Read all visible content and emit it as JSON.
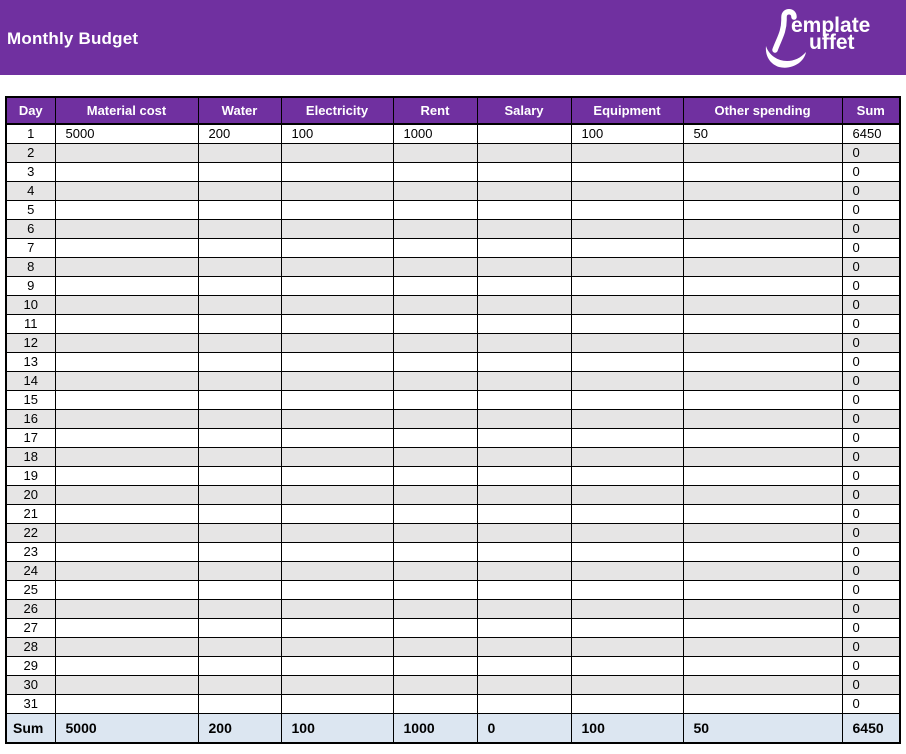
{
  "header": {
    "title": "Monthly Budget",
    "logo": {
      "icon": "ladle-icon",
      "line1": "emplate",
      "line2": "uffet"
    }
  },
  "colors": {
    "banner_bg": "#7030A0",
    "header_row_bg": "#7030A0",
    "header_text": "#FFFFFF",
    "row_alt_bg": "#E6E5E5",
    "footer_row_bg": "#DCE6F1",
    "grid_border": "#000000"
  },
  "table": {
    "columns": [
      "Day",
      "Material cost",
      "Water",
      "Electricity",
      "Rent",
      "Salary",
      "Equipment",
      "Other spending",
      "Sum"
    ],
    "rows": [
      {
        "day": "1",
        "cells": [
          "5000",
          "200",
          "100",
          "1000",
          "",
          "100",
          "50"
        ],
        "sum": "6450"
      },
      {
        "day": "2",
        "cells": [
          "",
          "",
          "",
          "",
          "",
          "",
          ""
        ],
        "sum": "0"
      },
      {
        "day": "3",
        "cells": [
          "",
          "",
          "",
          "",
          "",
          "",
          ""
        ],
        "sum": "0"
      },
      {
        "day": "4",
        "cells": [
          "",
          "",
          "",
          "",
          "",
          "",
          ""
        ],
        "sum": "0"
      },
      {
        "day": "5",
        "cells": [
          "",
          "",
          "",
          "",
          "",
          "",
          ""
        ],
        "sum": "0"
      },
      {
        "day": "6",
        "cells": [
          "",
          "",
          "",
          "",
          "",
          "",
          ""
        ],
        "sum": "0"
      },
      {
        "day": "7",
        "cells": [
          "",
          "",
          "",
          "",
          "",
          "",
          ""
        ],
        "sum": "0"
      },
      {
        "day": "8",
        "cells": [
          "",
          "",
          "",
          "",
          "",
          "",
          ""
        ],
        "sum": "0"
      },
      {
        "day": "9",
        "cells": [
          "",
          "",
          "",
          "",
          "",
          "",
          ""
        ],
        "sum": "0"
      },
      {
        "day": "10",
        "cells": [
          "",
          "",
          "",
          "",
          "",
          "",
          ""
        ],
        "sum": "0"
      },
      {
        "day": "11",
        "cells": [
          "",
          "",
          "",
          "",
          "",
          "",
          ""
        ],
        "sum": "0"
      },
      {
        "day": "12",
        "cells": [
          "",
          "",
          "",
          "",
          "",
          "",
          ""
        ],
        "sum": "0"
      },
      {
        "day": "13",
        "cells": [
          "",
          "",
          "",
          "",
          "",
          "",
          ""
        ],
        "sum": "0"
      },
      {
        "day": "14",
        "cells": [
          "",
          "",
          "",
          "",
          "",
          "",
          ""
        ],
        "sum": "0"
      },
      {
        "day": "15",
        "cells": [
          "",
          "",
          "",
          "",
          "",
          "",
          ""
        ],
        "sum": "0"
      },
      {
        "day": "16",
        "cells": [
          "",
          "",
          "",
          "",
          "",
          "",
          ""
        ],
        "sum": "0"
      },
      {
        "day": "17",
        "cells": [
          "",
          "",
          "",
          "",
          "",
          "",
          ""
        ],
        "sum": "0"
      },
      {
        "day": "18",
        "cells": [
          "",
          "",
          "",
          "",
          "",
          "",
          ""
        ],
        "sum": "0"
      },
      {
        "day": "19",
        "cells": [
          "",
          "",
          "",
          "",
          "",
          "",
          ""
        ],
        "sum": "0"
      },
      {
        "day": "20",
        "cells": [
          "",
          "",
          "",
          "",
          "",
          "",
          ""
        ],
        "sum": "0"
      },
      {
        "day": "21",
        "cells": [
          "",
          "",
          "",
          "",
          "",
          "",
          ""
        ],
        "sum": "0"
      },
      {
        "day": "22",
        "cells": [
          "",
          "",
          "",
          "",
          "",
          "",
          ""
        ],
        "sum": "0"
      },
      {
        "day": "23",
        "cells": [
          "",
          "",
          "",
          "",
          "",
          "",
          ""
        ],
        "sum": "0"
      },
      {
        "day": "24",
        "cells": [
          "",
          "",
          "",
          "",
          "",
          "",
          ""
        ],
        "sum": "0"
      },
      {
        "day": "25",
        "cells": [
          "",
          "",
          "",
          "",
          "",
          "",
          ""
        ],
        "sum": "0"
      },
      {
        "day": "26",
        "cells": [
          "",
          "",
          "",
          "",
          "",
          "",
          ""
        ],
        "sum": "0"
      },
      {
        "day": "27",
        "cells": [
          "",
          "",
          "",
          "",
          "",
          "",
          ""
        ],
        "sum": "0"
      },
      {
        "day": "28",
        "cells": [
          "",
          "",
          "",
          "",
          "",
          "",
          ""
        ],
        "sum": "0"
      },
      {
        "day": "29",
        "cells": [
          "",
          "",
          "",
          "",
          "",
          "",
          ""
        ],
        "sum": "0"
      },
      {
        "day": "30",
        "cells": [
          "",
          "",
          "",
          "",
          "",
          "",
          ""
        ],
        "sum": "0"
      },
      {
        "day": "31",
        "cells": [
          "",
          "",
          "",
          "",
          "",
          "",
          ""
        ],
        "sum": "0"
      }
    ],
    "footer": {
      "label": "Sum",
      "cells": [
        "5000",
        "200",
        "100",
        "1000",
        "0",
        "100",
        "50"
      ],
      "sum": "6450"
    }
  }
}
